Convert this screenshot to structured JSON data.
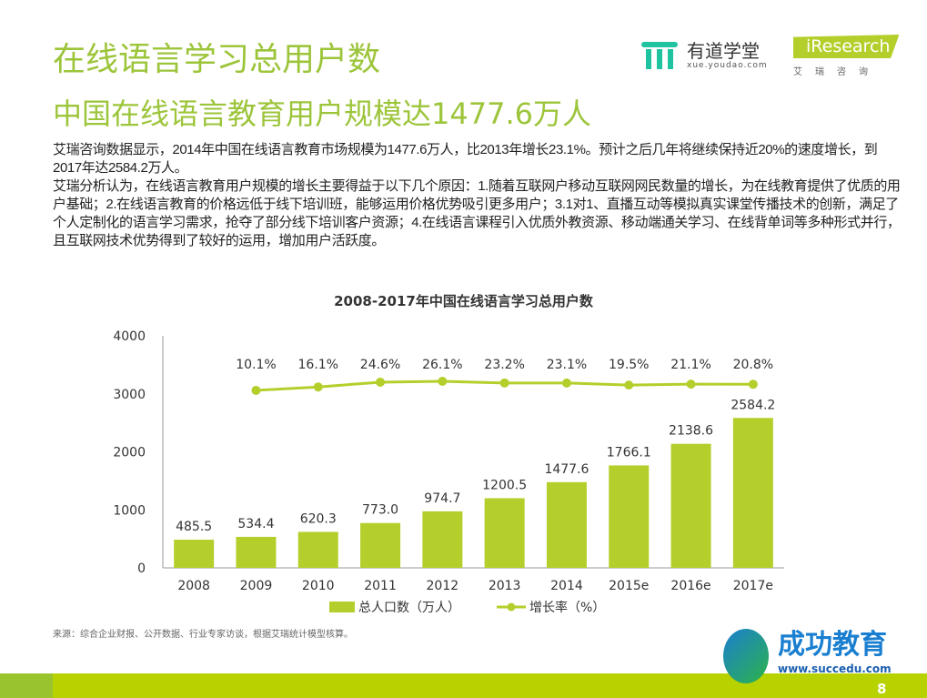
{
  "header": {
    "title": "在线语言学习总用户数",
    "subtitle": "中国在线语言教育用户规模达1477.6万人"
  },
  "logos": {
    "youdao_name": "有道学堂",
    "youdao_url": "xue.youdao.com",
    "iresearch": "iResearch",
    "iresearch_cn": "艾瑞咨询",
    "succedu_name": "成功教育",
    "succedu_url": "www.succedu.com"
  },
  "body": [
    "艾瑞咨询数据显示，2014年中国在线语言教育市场规模为1477.6万人，比2013年增长23.1%。预计之后几年将继续保持近20%的速度增长，到2017年达2584.2万人。",
    "艾瑞分析认为，在线语言教育用户规模的增长主要得益于以下几个原因：1.随着互联网户移动互联网网民数量的增长，为在线教育提供了优质的用户基础；2.在线语言教育的价格远低于线下培训班，能够运用价格优势吸引更多用户；3.1对1、直播互动等模拟真实课堂传播技术的创新，满足了个人定制化的语言学习需求，抢夺了部分线下培训客户资源；4.在线语言课程引入优质外教资源、移动端通关学习、在线背单词等多种形式并行，且互联网技术优势得到了较好的运用，增加用户活跃度。"
  ],
  "chart_data": {
    "type": "bar+line",
    "title": "2008-2017年中国在线语言学习总用户数",
    "categories": [
      "2008",
      "2009",
      "2010",
      "2011",
      "2012",
      "2013",
      "2014",
      "2015e",
      "2016e",
      "2017e"
    ],
    "ylim": [
      0,
      4000
    ],
    "yticks": [
      "0",
      "1000",
      "2000",
      "3000",
      "4000"
    ],
    "series": [
      {
        "name": "总人口数（万人）",
        "type": "bar",
        "color": "#b4cf2b",
        "values": [
          485.5,
          534.4,
          620.3,
          773.0,
          974.7,
          1200.5,
          1477.6,
          1766.1,
          2138.6,
          2584.2
        ],
        "labels": [
          "485.5",
          "534.4",
          "620.3",
          "773.0",
          "974.7",
          "1200.5",
          "1477.6",
          "1766.1",
          "2138.6",
          "2584.2"
        ]
      },
      {
        "name": "增长率（%）",
        "type": "line",
        "color": "#b4cf2b",
        "values": [
          null,
          10.1,
          16.1,
          24.6,
          26.1,
          23.2,
          23.1,
          19.5,
          21.1,
          20.8
        ],
        "labels": [
          "",
          "10.1%",
          "16.1%",
          "24.6%",
          "26.1%",
          "23.2%",
          "23.1%",
          "19.5%",
          "21.1%",
          "20.8%"
        ]
      }
    ],
    "legend": "bottom",
    "grid": false
  },
  "source": "来源：综合企业财报、公开数据、行业专家访谈，根据艾瑞统计模型核算。",
  "page_number": "8"
}
